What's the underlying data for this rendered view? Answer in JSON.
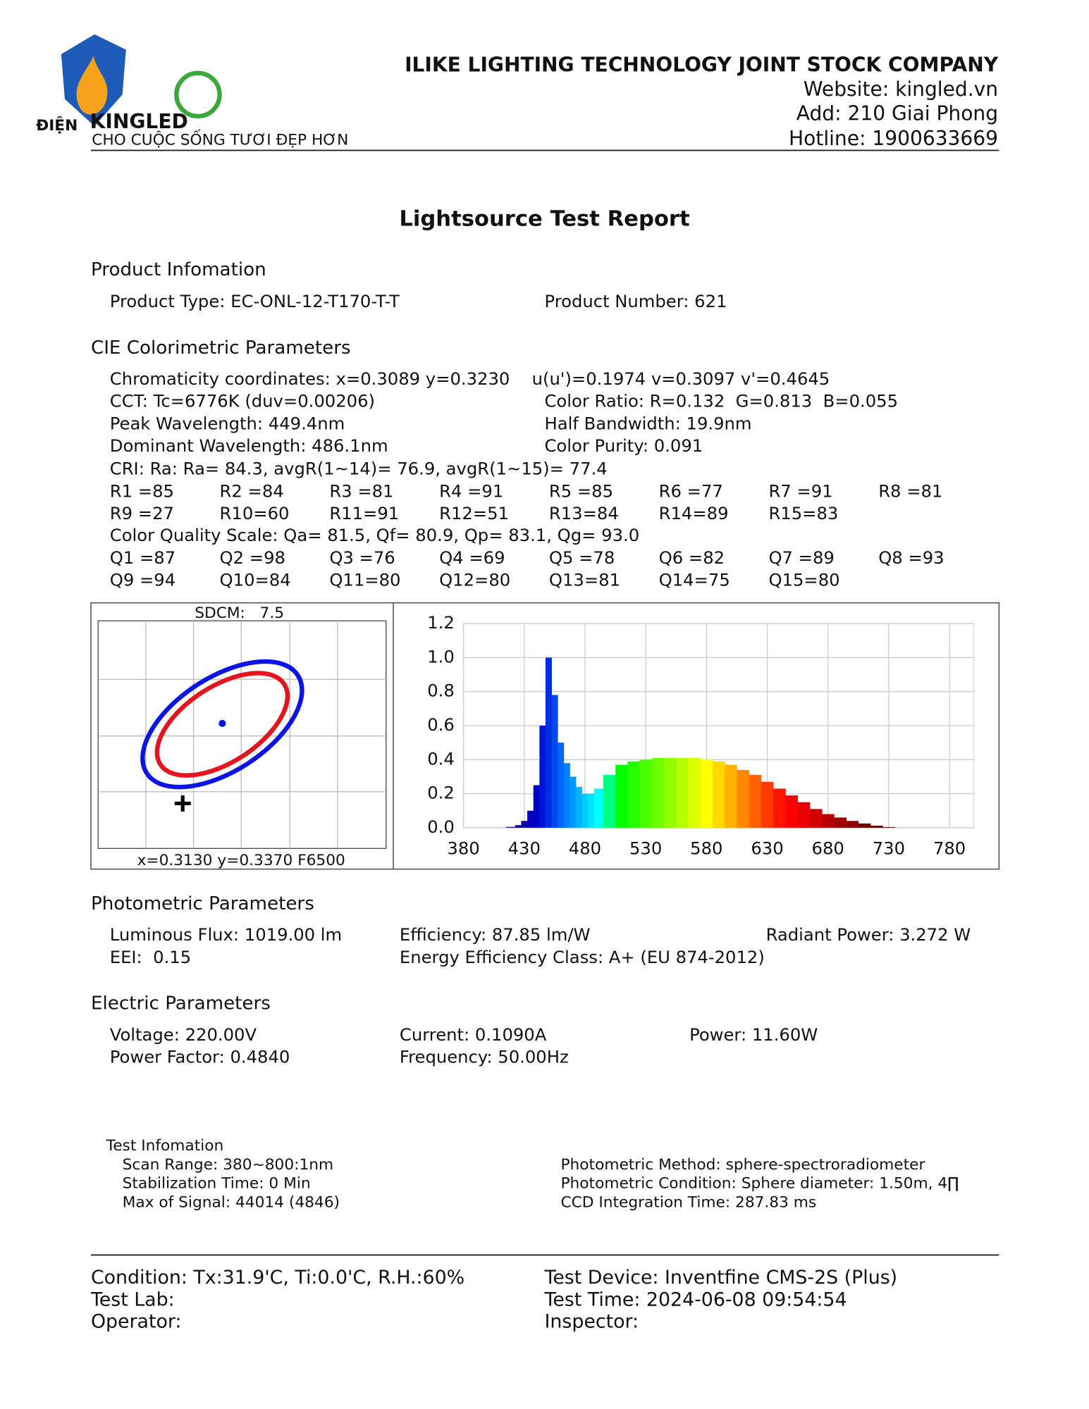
{
  "header": {
    "logo": {
      "brand_left": "ĐIỆN",
      "brand": "KINGLED",
      "slogan": "CHO CUỘC SỐNG TƯƠI ĐẸP HƠN"
    },
    "company": "ILIKE LIGHTING TECHNOLOGY JOINT STOCK COMPANY",
    "website": "Website: kingled.vn",
    "address": "Add: 210 Giai Phong",
    "hotline": "Hotline: 1900633669"
  },
  "title": "Lightsource Test Report",
  "product": {
    "heading": "Product Infomation",
    "type": "Product Type: EC-ONL-12-T170-T-T",
    "number": "Product Number: 621"
  },
  "cie": {
    "heading": "CIE Colorimetric Parameters",
    "lines": [
      [
        "Chromaticity coordinates: x=0.3089 y=0.3230",
        "u(u')=0.1974 v=0.3097 v'=0.4645"
      ],
      [
        "CCT: Tc=6776K (duv=0.00206)",
        "Color Ratio: R=0.132  G=0.813  B=0.055"
      ],
      [
        "Peak Wavelength: 449.4nm",
        "Half Bandwidth: 19.9nm"
      ],
      [
        "Dominant Wavelength: 486.1nm",
        "Color Purity: 0.091"
      ]
    ],
    "cri": "CRI: Ra: Ra= 84.3, avgR(1~14)= 76.9, avgR(1~15)= 77.4",
    "r_values": [
      [
        "R1 =85",
        "R2 =84",
        "R3 =81",
        "R4 =91",
        "R5 =85",
        "R6 =77",
        "R7 =91",
        "R8 =81"
      ],
      [
        "R9 =27",
        "R10=60",
        "R11=91",
        "R12=51",
        "R13=84",
        "R14=89",
        "R15=83"
      ]
    ],
    "cqs": "Color Quality Scale: Qa= 81.5, Qf= 80.9, Qp= 83.1, Qg= 93.0",
    "q_values": [
      [
        "Q1 =87",
        "Q2 =98",
        "Q3 =76",
        "Q4 =69",
        "Q5 =78",
        "Q6 =82",
        "Q7 =89",
        "Q8 =93"
      ],
      [
        "Q9 =94",
        "Q10=84",
        "Q11=80",
        "Q12=80",
        "Q13=81",
        "Q14=75",
        "Q15=80"
      ]
    ]
  },
  "cie_plot": {
    "label": "SDCM:   7.5",
    "reference": "x=0.3130 y=0.3370 F6500"
  },
  "chart_data": {
    "type": "spectrum",
    "x": [
      380,
      390,
      400,
      410,
      420,
      425,
      430,
      435,
      440,
      445,
      450,
      455,
      460,
      465,
      470,
      475,
      480,
      485,
      490,
      500,
      510,
      520,
      530,
      540,
      550,
      560,
      570,
      580,
      590,
      600,
      610,
      620,
      630,
      640,
      650,
      660,
      670,
      680,
      690,
      700,
      710,
      720,
      730,
      740,
      750,
      760,
      770,
      780,
      790,
      800
    ],
    "values": [
      0,
      0,
      0,
      0,
      0.005,
      0.015,
      0.04,
      0.1,
      0.25,
      0.6,
      1.0,
      0.78,
      0.5,
      0.38,
      0.3,
      0.24,
      0.2,
      0.2,
      0.23,
      0.31,
      0.37,
      0.39,
      0.4,
      0.41,
      0.41,
      0.41,
      0.41,
      0.4,
      0.39,
      0.37,
      0.34,
      0.31,
      0.27,
      0.23,
      0.19,
      0.15,
      0.11,
      0.08,
      0.06,
      0.04,
      0.025,
      0.012,
      0.004,
      0,
      0,
      0,
      0,
      0,
      0,
      0
    ],
    "xlim": [
      380,
      800
    ],
    "ylim": [
      0,
      1.2
    ],
    "xticks": [
      380,
      430,
      480,
      530,
      580,
      630,
      680,
      730,
      780
    ],
    "yticks": [
      {
        "value": 0,
        "label": "0.0"
      },
      {
        "value": 0.2,
        "label": "0.2"
      },
      {
        "value": 0.4,
        "label": "0.4"
      },
      {
        "value": 0.6,
        "label": "0.6"
      },
      {
        "value": 0.8,
        "label": "0.8"
      },
      {
        "value": 1,
        "label": "1.0"
      },
      {
        "value": 1.2,
        "label": "1.2"
      }
    ],
    "grid": true
  },
  "photometric": {
    "heading": "Photometric Parameters",
    "rows": [
      [
        "Luminous Flux: 1019.00 lm",
        "Efficiency: 87.85 lm/W",
        "Radiant Power: 3.272 W"
      ],
      [
        "EEI:  0.15",
        "Energy Efficiency Class: A+ (EU 874-2012)"
      ]
    ]
  },
  "electric": {
    "heading": "Electric Parameters",
    "rows": [
      [
        "Voltage: 220.00V",
        "Current: 0.1090A",
        "Power: 11.60W"
      ],
      [
        "Power Factor: 0.4840",
        "Frequency: 50.00Hz"
      ]
    ]
  },
  "test_info": {
    "heading": "Test Infomation",
    "left": [
      "Scan Range: 380~800:1nm",
      "Stabilization Time: 0 Min",
      "Max of Signal: 44014 (4846)"
    ],
    "right": [
      "Photometric Method: sphere-spectroradiometer",
      "Photometric Condition: Sphere diameter: 1.50m, 4∏",
      "CCD Integration Time: 287.83 ms"
    ]
  },
  "footer": {
    "left": [
      "Condition: Tx:31.9'C, Ti:0.0'C, R.H.:60%",
      "Test Lab:",
      "Operator:"
    ],
    "right": [
      "Test Device: Inventfine CMS-2S (Plus)",
      "Test Time: 2024-06-08 09:54:54",
      "Inspector:"
    ]
  }
}
